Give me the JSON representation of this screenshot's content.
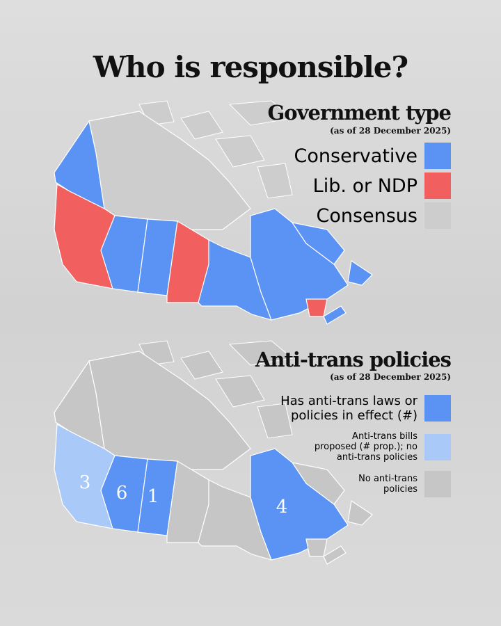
{
  "title": "Who is responsible?",
  "maps": [
    {
      "title": "Government type",
      "subtitle": "(as of 28 December 2025)",
      "legend": [
        {
          "label": "Conservative",
          "color": "#5b93f5"
        },
        {
          "label": "Lib. or NDP",
          "color": "#f25f5f"
        },
        {
          "label": "Consensus",
          "color": "#cdcdcd"
        }
      ]
    },
    {
      "title": "Anti-trans policies",
      "subtitle": "(as of 28 December 2025)",
      "legend": [
        {
          "label": "Has anti-trans laws or policies in effect (#)",
          "color": "#5b93f5"
        },
        {
          "label": "Anti-trans bills proposed (# prop.); no anti-trans policies",
          "color": "#a9c9f8"
        },
        {
          "label": "No anti-trans policies",
          "color": "#c6c6c6"
        }
      ],
      "counts": [
        3,
        6,
        1,
        4
      ]
    }
  ]
}
